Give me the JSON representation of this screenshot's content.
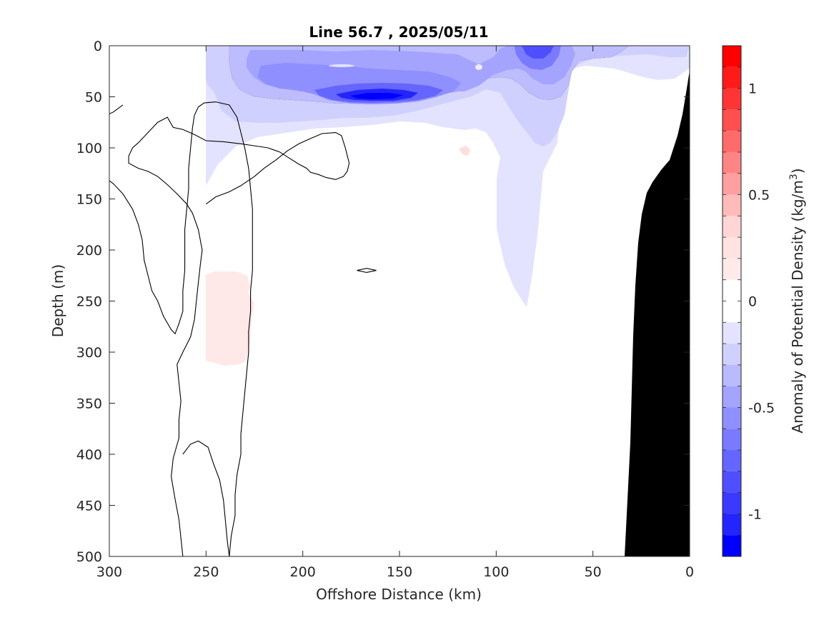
{
  "chart_data": {
    "type": "heatmap",
    "title": "Line 56.7 , 2025/05/11",
    "xlabel": "Offshore Distance (km)",
    "ylabel": "Depth (m)",
    "colorbar_label": "Anomaly of Potential Density (kg/m",
    "colorbar_label_sup": "3",
    "colorbar_label_end": ")",
    "xlim": [
      300,
      0
    ],
    "ylim": [
      500,
      0
    ],
    "x_ticks": [
      300,
      250,
      200,
      150,
      100,
      50,
      0
    ],
    "y_ticks": [
      0,
      50,
      100,
      150,
      200,
      250,
      300,
      350,
      400,
      450,
      500
    ],
    "colorbar_range": [
      -1.2,
      1.2
    ],
    "colorbar_ticks": [
      {
        "value": 1,
        "label": "1"
      },
      {
        "value": 0.5,
        "label": "0.5"
      },
      {
        "value": 0,
        "label": "0"
      },
      {
        "value": -0.5,
        "label": "-0.5"
      },
      {
        "value": -1,
        "label": "-1"
      }
    ],
    "colorbar_levels": [
      {
        "from": 1.1,
        "to": 1.2,
        "color": "#ff0000"
      },
      {
        "from": 1.0,
        "to": 1.1,
        "color": "#ff1a1a"
      },
      {
        "from": 0.9,
        "to": 1.0,
        "color": "#ff3535"
      },
      {
        "from": 0.8,
        "to": 0.9,
        "color": "#ff4f4f"
      },
      {
        "from": 0.7,
        "to": 0.8,
        "color": "#ff6a6a"
      },
      {
        "from": 0.6,
        "to": 0.7,
        "color": "#ff8585"
      },
      {
        "from": 0.5,
        "to": 0.6,
        "color": "#ff9f9f"
      },
      {
        "from": 0.4,
        "to": 0.5,
        "color": "#ffbaba"
      },
      {
        "from": 0.3,
        "to": 0.4,
        "color": "#ffd5d5"
      },
      {
        "from": 0.2,
        "to": 0.3,
        "color": "#ffe3e3"
      },
      {
        "from": 0.1,
        "to": 0.2,
        "color": "#ffeaea"
      },
      {
        "from": 0.0,
        "to": 0.1,
        "color": "#ffffff"
      },
      {
        "from": -0.1,
        "to": 0.0,
        "color": "#ffffff"
      },
      {
        "from": -0.2,
        "to": -0.1,
        "color": "#e3e3ff"
      },
      {
        "from": -0.3,
        "to": -0.2,
        "color": "#d0d0ff"
      },
      {
        "from": -0.4,
        "to": -0.3,
        "color": "#baba ff"
      },
      {
        "from": -0.5,
        "to": -0.4,
        "color": "#a4a4ff"
      },
      {
        "from": -0.6,
        "to": -0.5,
        "color": "#8f8fff"
      },
      {
        "from": -0.7,
        "to": -0.6,
        "color": "#7a7aff"
      },
      {
        "from": -0.8,
        "to": -0.7,
        "color": "#6565ff"
      },
      {
        "from": -0.9,
        "to": -0.8,
        "color": "#4f4fff"
      },
      {
        "from": -1.0,
        "to": -0.9,
        "color": "#3a3aff"
      },
      {
        "from": -1.1,
        "to": -1.0,
        "color": "#2424ff"
      },
      {
        "from": -1.2,
        "to": -1.1,
        "color": "#0000ff"
      }
    ],
    "zero_contour_lines": [
      [
        [
          250,
          155
        ],
        [
          245,
          148
        ],
        [
          238,
          143
        ],
        [
          232,
          137
        ],
        [
          225,
          128
        ],
        [
          220,
          120
        ],
        [
          214,
          112
        ],
        [
          208,
          103
        ],
        [
          202,
          96
        ],
        [
          195,
          90
        ],
        [
          190,
          86
        ],
        [
          183,
          85
        ],
        [
          180,
          88
        ],
        [
          178,
          100
        ],
        [
          176,
          115
        ],
        [
          177,
          123
        ],
        [
          179,
          128
        ],
        [
          183,
          131
        ],
        [
          188,
          129
        ],
        [
          192,
          126
        ],
        [
          196,
          124
        ],
        [
          198,
          120
        ],
        [
          202,
          116
        ],
        [
          207,
          110
        ],
        [
          212,
          104
        ],
        [
          218,
          100
        ],
        [
          225,
          98
        ],
        [
          232,
          96
        ],
        [
          241,
          94
        ],
        [
          250,
          93
        ],
        [
          256,
          87
        ],
        [
          262,
          82
        ],
        [
          267,
          80
        ],
        [
          270,
          70
        ],
        [
          272,
          72
        ],
        [
          275,
          75
        ],
        [
          280,
          85
        ],
        [
          285,
          95
        ],
        [
          288,
          100
        ],
        [
          290,
          108
        ],
        [
          290,
          115
        ],
        [
          285,
          120
        ],
        [
          280,
          123
        ],
        [
          275,
          128
        ],
        [
          270,
          136
        ],
        [
          265,
          145
        ],
        [
          260,
          155
        ],
        [
          257,
          164
        ],
        [
          254,
          180
        ],
        [
          252,
          200
        ],
        [
          253,
          215
        ],
        [
          254,
          232
        ],
        [
          255,
          250
        ],
        [
          256,
          268
        ],
        [
          258,
          285
        ],
        [
          262,
          300
        ],
        [
          265,
          312
        ],
        [
          264,
          330
        ],
        [
          263,
          348
        ],
        [
          264,
          366
        ],
        [
          264,
          384
        ],
        [
          267,
          404
        ],
        [
          268,
          422
        ],
        [
          266,
          444
        ],
        [
          264,
          464
        ],
        [
          263,
          482
        ],
        [
          262,
          500
        ]
      ],
      [
        [
          172,
          220
        ],
        [
          167,
          218
        ],
        [
          162,
          220
        ],
        [
          167,
          222
        ],
        [
          172,
          220
        ]
      ],
      [
        [
          238,
          500
        ],
        [
          237,
          480
        ],
        [
          235,
          460
        ],
        [
          235,
          440
        ],
        [
          234,
          420
        ],
        [
          232,
          400
        ],
        [
          232,
          380
        ],
        [
          231,
          360
        ],
        [
          230,
          340
        ],
        [
          229,
          320
        ],
        [
          228,
          300
        ],
        [
          228,
          280
        ],
        [
          227,
          260
        ],
        [
          227,
          240
        ],
        [
          226,
          220
        ],
        [
          226,
          200
        ],
        [
          226,
          180
        ],
        [
          226,
          160
        ],
        [
          227,
          140
        ],
        [
          228,
          120
        ],
        [
          230,
          100
        ],
        [
          232,
          85
        ],
        [
          234,
          70
        ],
        [
          238,
          58
        ],
        [
          245,
          55
        ],
        [
          251,
          56
        ],
        [
          254,
          60
        ],
        [
          256,
          68
        ],
        [
          257,
          80
        ],
        [
          258,
          100
        ],
        [
          259,
          120
        ],
        [
          259,
          140
        ],
        [
          260,
          160
        ],
        [
          261,
          180
        ],
        [
          261,
          200
        ],
        [
          261,
          220
        ],
        [
          262,
          240
        ],
        [
          262,
          260
        ],
        [
          264,
          272
        ],
        [
          266,
          282
        ],
        [
          268,
          278
        ],
        [
          272,
          265
        ],
        [
          275,
          250
        ],
        [
          278,
          240
        ],
        [
          280,
          225
        ],
        [
          282,
          210
        ],
        [
          283,
          190
        ],
        [
          285,
          175
        ],
        [
          288,
          160
        ],
        [
          293,
          145
        ],
        [
          298,
          135
        ],
        [
          305,
          125
        ],
        [
          310,
          120
        ]
      ],
      [
        [
          238,
          500
        ],
        [
          239,
          485
        ],
        [
          240,
          465
        ],
        [
          241,
          445
        ],
        [
          243,
          425
        ],
        [
          246,
          410
        ],
        [
          249,
          393
        ],
        [
          254,
          387
        ],
        [
          258,
          390
        ],
        [
          262,
          400
        ]
      ],
      [
        [
          293,
          58
        ],
        [
          298,
          65
        ],
        [
          304,
          70
        ],
        [
          312,
          66
        ],
        [
          316,
          62
        ],
        [
          318,
          58
        ],
        [
          318,
          50
        ],
        [
          321,
          40
        ],
        [
          325,
          35
        ],
        [
          330,
          30
        ],
        [
          333,
          28
        ]
      ]
    ]
  }
}
